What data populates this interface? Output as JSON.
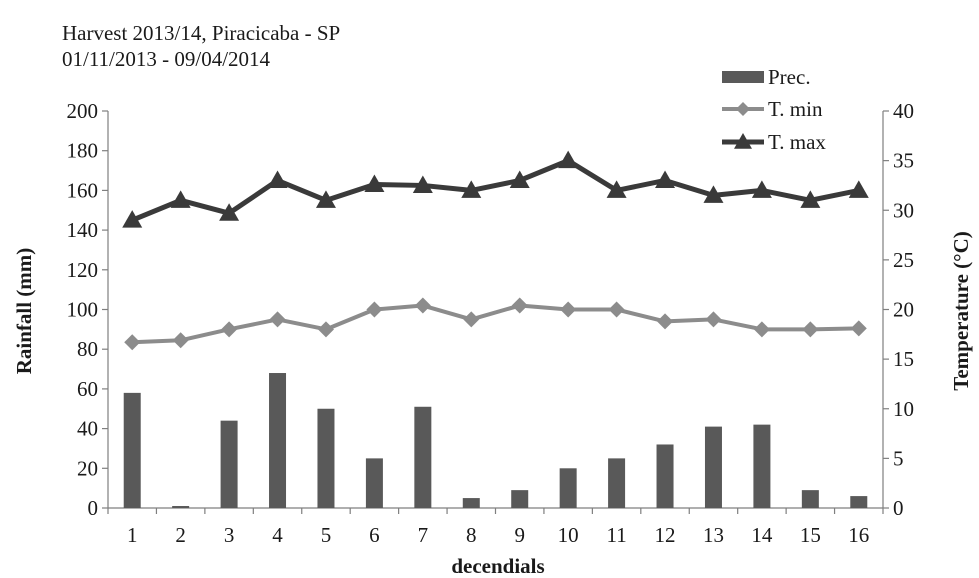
{
  "chart_data": {
    "type": "bar+line",
    "title_lines": [
      "Harvest 2013/14, Piracicaba - SP",
      "01/11/2013  - 09/04/2014"
    ],
    "xlabel": "decendials",
    "ylabel_left": "Rainfall (mm)",
    "ylabel_right": "Temperature (°C)",
    "categories": [
      "1",
      "2",
      "3",
      "4",
      "5",
      "6",
      "7",
      "8",
      "9",
      "10",
      "11",
      "12",
      "13",
      "14",
      "15",
      "16"
    ],
    "ylim_left": [
      0,
      200
    ],
    "yticks_left": [
      "0",
      "20",
      "40",
      "60",
      "80",
      "100",
      "120",
      "140",
      "160",
      "180",
      "200"
    ],
    "ylim_right": [
      0,
      40
    ],
    "yticks_right": [
      "0",
      "5",
      "10",
      "15",
      "20",
      "25",
      "30",
      "35",
      "40"
    ],
    "grid": false,
    "legend_position": "top-right",
    "series": [
      {
        "name": "Prec.",
        "type": "bar",
        "axis": "left",
        "color": "#595959",
        "values": [
          58,
          1,
          44,
          68,
          50,
          25,
          51,
          5,
          9,
          20,
          25,
          32,
          41,
          42,
          9,
          6
        ]
      },
      {
        "name": "T. min",
        "type": "line",
        "axis": "right",
        "color": "#8c8c8c",
        "marker": "diamond",
        "values": [
          16.7,
          16.9,
          18.0,
          19.0,
          18.0,
          20.0,
          20.4,
          19.0,
          20.4,
          20.0,
          20.0,
          18.8,
          19.0,
          18.0,
          18.0,
          18.1
        ]
      },
      {
        "name": "T. max",
        "type": "line",
        "axis": "right",
        "color": "#3a3a3a",
        "marker": "triangle",
        "values": [
          29.0,
          31.0,
          29.7,
          33.0,
          31.0,
          32.6,
          32.5,
          32.0,
          33.0,
          35.0,
          32.0,
          33.0,
          31.5,
          32.0,
          31.0,
          32.0
        ]
      }
    ]
  }
}
